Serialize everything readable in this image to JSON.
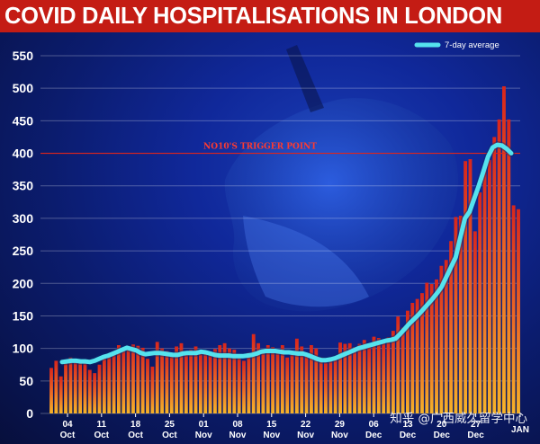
{
  "title": "COVID DAILY HOSPITALISATIONS IN LONDON",
  "watermark": "知乎 @广西威久留学中心",
  "colors": {
    "title_bg": "#c41c14",
    "average_line": "#55e3ee",
    "bar_top": "#d8261c",
    "bar_bottom": "#f6b329",
    "trigger_line": "#e0251b"
  },
  "chart_data": {
    "type": "bar",
    "title": "COVID DAILY HOSPITALISATIONS IN LONDON",
    "ylim": [
      0,
      550
    ],
    "yticks": [
      0,
      50,
      100,
      150,
      200,
      250,
      300,
      350,
      400,
      450,
      500,
      550
    ],
    "x_tick_labels": [
      {
        "day": "04",
        "month": "Oct"
      },
      {
        "day": "11",
        "month": "Oct"
      },
      {
        "day": "18",
        "month": "Oct"
      },
      {
        "day": "25",
        "month": "Oct"
      },
      {
        "day": "01",
        "month": "Nov"
      },
      {
        "day": "08",
        "month": "Nov"
      },
      {
        "day": "15",
        "month": "Nov"
      },
      {
        "day": "22",
        "month": "Nov"
      },
      {
        "day": "29",
        "month": "Nov"
      },
      {
        "day": "06",
        "month": "Dec"
      },
      {
        "day": "13",
        "month": "Dec"
      },
      {
        "day": "20",
        "month": "Dec"
      },
      {
        "day": "27",
        "month": "Dec"
      },
      {
        "day": "",
        "month": "JAN"
      }
    ],
    "daily_values": [
      70,
      81,
      57,
      83,
      86,
      82,
      83,
      77,
      67,
      62,
      75,
      86,
      90,
      94,
      105,
      96,
      102,
      106,
      104,
      101,
      84,
      72,
      110,
      100,
      96,
      92,
      103,
      108,
      91,
      98,
      103,
      91,
      93,
      90,
      99,
      105,
      108,
      100,
      98,
      86,
      81,
      93,
      122,
      108,
      99,
      105,
      102,
      97,
      105,
      86,
      95,
      115,
      103,
      92,
      105,
      100,
      86,
      78,
      84,
      87,
      109,
      107,
      108,
      102,
      107,
      113,
      103,
      118,
      116,
      109,
      117,
      127,
      149,
      132,
      158,
      170,
      176,
      185,
      201,
      199,
      206,
      227,
      236,
      265,
      302,
      304,
      388,
      391,
      280,
      340,
      380,
      390,
      425,
      452,
      503,
      452,
      320,
      314
    ],
    "series": [
      {
        "name": "7-day average",
        "values": [
          79,
          80,
          81,
          81,
          80,
          80,
          79,
          81,
          84,
          87,
          89,
          92,
          95,
          98,
          101,
          99,
          97,
          93,
          91,
          92,
          93,
          93,
          92,
          91,
          90,
          90,
          92,
          93,
          93,
          93,
          95,
          94,
          92,
          90,
          89,
          89,
          89,
          88,
          88,
          88,
          89,
          90,
          92,
          95,
          96,
          96,
          96,
          95,
          94,
          94,
          93,
          92,
          92,
          90,
          87,
          84,
          82,
          82,
          83,
          85,
          88,
          91,
          94,
          97,
          100,
          102,
          104,
          106,
          108,
          110,
          112,
          113,
          115,
          122,
          130,
          138,
          145,
          152,
          160,
          168,
          176,
          185,
          195,
          210,
          225,
          240,
          270,
          300,
          310,
          330,
          350,
          372,
          395,
          409,
          413,
          412,
          407,
          400
        ]
      }
    ],
    "reference_line": {
      "value": 400,
      "label": "NO10'S TRIGGER POINT"
    },
    "legend": {
      "label": "7-day average",
      "position": "top-right"
    },
    "grid": true
  }
}
